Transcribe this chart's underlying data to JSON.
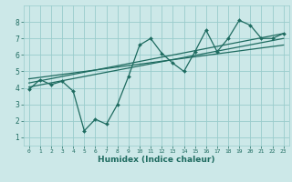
{
  "xlabel": "Humidex (Indice chaleur)",
  "xlim": [
    -0.5,
    23.5
  ],
  "ylim": [
    0.5,
    9.0
  ],
  "yticks": [
    1,
    2,
    3,
    4,
    5,
    6,
    7,
    8
  ],
  "xticks": [
    0,
    1,
    2,
    3,
    4,
    5,
    6,
    7,
    8,
    9,
    10,
    11,
    12,
    13,
    14,
    15,
    16,
    17,
    18,
    19,
    20,
    21,
    22,
    23
  ],
  "bg_color": "#cce8e8",
  "line_color": "#1e6b60",
  "grid_color": "#99cccc",
  "main_line_x": [
    0,
    1,
    2,
    3,
    4,
    5,
    6,
    7,
    8,
    9,
    10,
    11,
    12,
    13,
    14,
    15,
    16,
    17,
    18,
    19,
    20,
    21,
    22,
    23
  ],
  "main_line_y": [
    3.9,
    4.5,
    4.2,
    4.4,
    3.8,
    1.4,
    2.1,
    1.8,
    3.0,
    4.7,
    6.6,
    7.0,
    6.1,
    5.5,
    5.0,
    6.2,
    7.5,
    6.2,
    7.0,
    8.1,
    7.8,
    7.0,
    7.0,
    7.3
  ],
  "reg_line1_x": [
    0,
    23
  ],
  "reg_line1_y": [
    4.05,
    7.0
  ],
  "reg_line2_x": [
    0,
    23
  ],
  "reg_line2_y": [
    4.3,
    7.3
  ],
  "reg_line3_x": [
    0,
    23
  ],
  "reg_line3_y": [
    4.55,
    6.6
  ]
}
